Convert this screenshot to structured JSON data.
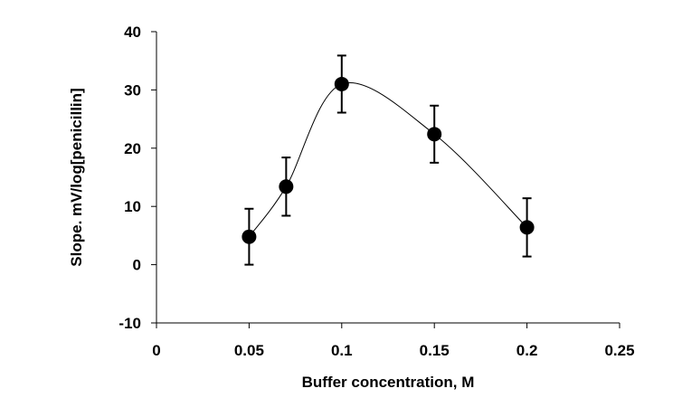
{
  "chart_data": {
    "type": "scatter",
    "xlabel": "Buffer concentration, M",
    "ylabel": "Slope. mV/log[penicillin]",
    "xlim": [
      0,
      0.25
    ],
    "ylim": [
      -10,
      40
    ],
    "xticks": [
      0,
      0.05,
      0.1,
      0.15,
      0.2,
      0.25
    ],
    "xtick_labels": [
      "0",
      "0.05",
      "0.1",
      "0.15",
      "0.2",
      "0.25"
    ],
    "yticks": [
      -10,
      0,
      10,
      20,
      30,
      40
    ],
    "ytick_labels": [
      "-10",
      "0",
      "10",
      "20",
      "30",
      "40"
    ],
    "grid": false,
    "smoothed_line": true,
    "marker": "filled-circle",
    "series": [
      {
        "x": [
          0.05,
          0.07,
          0.1,
          0.15,
          0.2
        ],
        "y": [
          4.8,
          13.4,
          31.0,
          22.4,
          6.4
        ],
        "error": [
          4.8,
          5.0,
          4.9,
          4.9,
          5.0
        ]
      }
    ]
  }
}
